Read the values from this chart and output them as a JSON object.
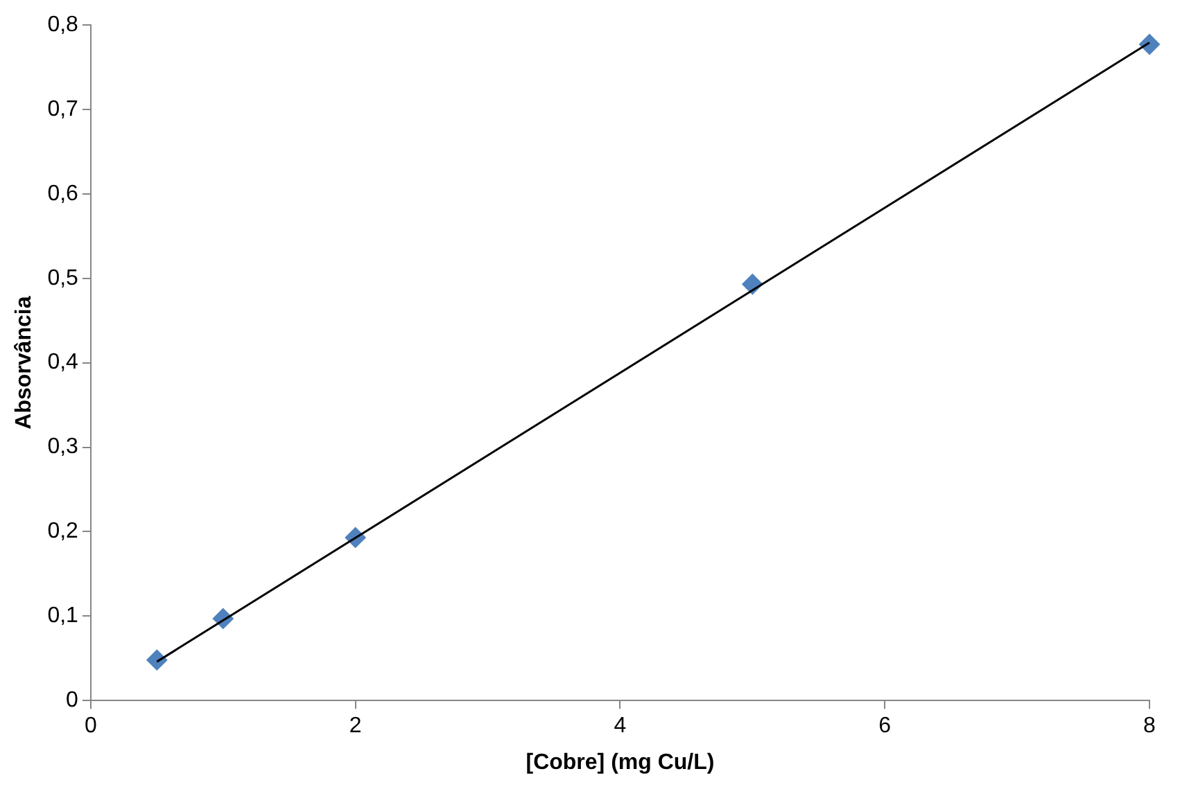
{
  "chart_data": {
    "type": "scatter",
    "xlabel": "[Cobre] (mg Cu/L)",
    "ylabel": "Absorvância",
    "xlim": [
      0,
      8
    ],
    "xticks": [
      0,
      2,
      4,
      6,
      8
    ],
    "ylim": [
      0,
      0.8
    ],
    "yticks": [
      0,
      {
        "value": 0.1,
        "label": "0,1"
      },
      {
        "value": 0.2,
        "label": "0,2"
      },
      {
        "value": 0.3,
        "label": "0,3"
      },
      {
        "value": 0.4,
        "label": "0,4"
      },
      {
        "value": 0.5,
        "label": "0,5"
      },
      {
        "value": 0.6,
        "label": "0,6"
      },
      {
        "value": 0.7,
        "label": "0,7"
      },
      {
        "value": 0.8,
        "label": "0,8"
      }
    ],
    "marker": "diamond",
    "series": [
      {
        "color": "#4f81bd",
        "x": [
          0.5,
          1,
          2,
          5,
          8
        ],
        "values": [
          0.048,
          0.097,
          0.193,
          0.493,
          0.777
        ]
      },
      {
        "type": "line",
        "color": "#000000",
        "marker": "none",
        "x": [
          0.5,
          8
        ],
        "values": [
          0.046,
          0.779
        ]
      }
    ]
  }
}
